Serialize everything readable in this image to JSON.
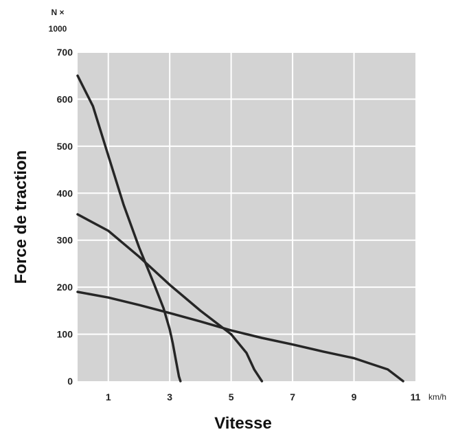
{
  "chart_data": {
    "type": "line",
    "title": "",
    "xlabel": "Vitesse",
    "ylabel": "Force de traction",
    "y_unit_line1": "N ×",
    "y_unit_line2": "1000",
    "x_unit": "km/h",
    "xlim": [
      0,
      11
    ],
    "ylim": [
      0,
      700
    ],
    "x_ticks": [
      1,
      3,
      5,
      7,
      9,
      11
    ],
    "y_ticks": [
      0,
      100,
      200,
      300,
      400,
      500,
      600,
      700
    ],
    "grid": true,
    "background_color": "#d3d3d3",
    "grid_color": "#ffffff",
    "line_color": "#262626",
    "series": [
      {
        "x": [
          0,
          0.5,
          1,
          1.5,
          2,
          2.5,
          2.8,
          3.0,
          3.1,
          3.2,
          3.3,
          3.35
        ],
        "y": [
          650,
          585,
          480,
          375,
          285,
          205,
          155,
          110,
          80,
          45,
          10,
          0
        ]
      },
      {
        "x": [
          0,
          1,
          2,
          3,
          4,
          5,
          5.5,
          5.75,
          6.0
        ],
        "y": [
          355,
          320,
          265,
          205,
          150,
          100,
          60,
          25,
          0
        ]
      },
      {
        "x": [
          0,
          1,
          2,
          3,
          4,
          5,
          6,
          7,
          8,
          9,
          9.5,
          10.1,
          10.6
        ],
        "y": [
          190,
          178,
          162,
          145,
          127,
          108,
          92,
          78,
          63,
          49,
          38,
          25,
          0
        ]
      }
    ]
  }
}
